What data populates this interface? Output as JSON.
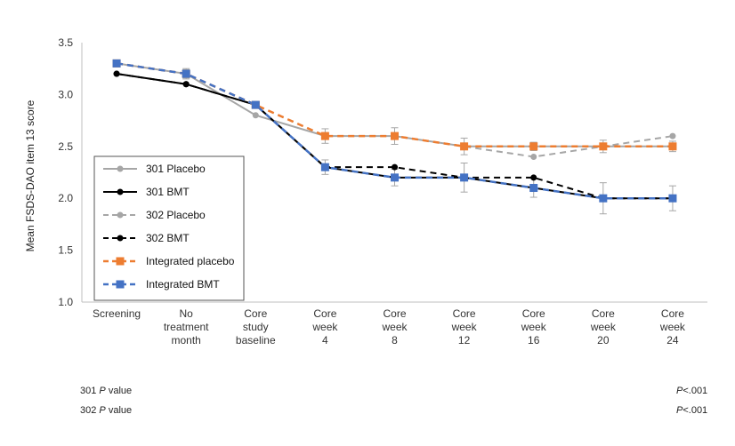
{
  "chart_data": {
    "type": "line",
    "ylabel": "Mean FSDS-DAO item 13 score",
    "xlabel": "",
    "ylim": [
      1.0,
      3.5
    ],
    "yticks": [
      "1.0",
      "1.5",
      "2.0",
      "2.5",
      "3.0",
      "3.5"
    ],
    "categories": [
      [
        "Screening"
      ],
      [
        "No",
        "treatment",
        "month"
      ],
      [
        "Core",
        "study",
        "baseline"
      ],
      [
        "Core",
        "week",
        "4"
      ],
      [
        "Core",
        "week",
        "8"
      ],
      [
        "Core",
        "week",
        "12"
      ],
      [
        "Core",
        "week",
        "16"
      ],
      [
        "Core",
        "week",
        "20"
      ],
      [
        "Core",
        "week",
        "24"
      ]
    ],
    "legend_position": "left",
    "grid": false,
    "series": [
      {
        "name": "301 Placebo",
        "color": "#a6a6a6",
        "dash": "solid",
        "marker": "circle",
        "values": [
          3.3,
          3.2,
          2.8,
          2.6,
          2.6,
          2.5,
          2.5,
          2.5,
          2.5
        ]
      },
      {
        "name": "301 BMT",
        "color": "#000000",
        "dash": "solid",
        "marker": "circle",
        "values": [
          3.2,
          3.1,
          2.9,
          2.3,
          2.2,
          2.2,
          2.1,
          2.0,
          2.0
        ]
      },
      {
        "name": "302 Placebo",
        "color": "#a6a6a6",
        "dash": "dashed",
        "marker": "circle",
        "values": [
          3.3,
          3.2,
          2.9,
          2.6,
          2.6,
          2.5,
          2.4,
          2.5,
          2.6
        ]
      },
      {
        "name": "302 BMT",
        "color": "#000000",
        "dash": "dashed",
        "marker": "circle",
        "values": [
          3.2,
          3.1,
          2.9,
          2.3,
          2.3,
          2.2,
          2.2,
          2.0,
          2.0
        ]
      },
      {
        "name": "Integrated placebo",
        "color": "#ed7d31",
        "dash": "dashed",
        "marker": "square",
        "values": [
          3.3,
          3.2,
          2.9,
          2.6,
          2.6,
          2.5,
          2.5,
          2.5,
          2.5
        ],
        "error": [
          0,
          0.04,
          0,
          0.07,
          0.08,
          0.08,
          0.04,
          0.06,
          0.05
        ]
      },
      {
        "name": "Integrated BMT",
        "color": "#4472c4",
        "dash": "dashed",
        "marker": "square",
        "values": [
          3.3,
          3.2,
          2.9,
          2.3,
          2.2,
          2.2,
          2.1,
          2.0,
          2.0
        ],
        "error": [
          0,
          0.05,
          0,
          0.07,
          0.08,
          0.14,
          0.09,
          0.15,
          0.12
        ]
      }
    ]
  },
  "pvalues": [
    {
      "label": "301",
      "italic": "P",
      "suffix": " value",
      "value_italic": "P",
      "value": "<.001"
    },
    {
      "label": "302",
      "italic": "P",
      "suffix": " value",
      "value_italic": "P",
      "value": "<.001"
    }
  ]
}
